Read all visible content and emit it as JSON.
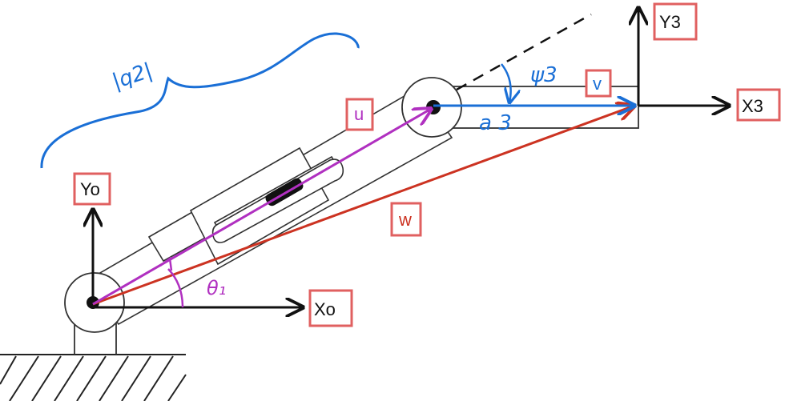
{
  "labels": {
    "y0": "Yo",
    "x0": "Xo",
    "y3": "Y3",
    "x3": "X3",
    "u": "u",
    "v": "v",
    "w": "w"
  },
  "annotations": {
    "theta1": "θ₁",
    "psi3": "ψ3",
    "a3": "a 3",
    "q2": "|q2|"
  },
  "colors": {
    "link": "#333333",
    "u_vector": "#b030c0",
    "v_vector": "#1a6fd6",
    "w_vector": "#cc3322",
    "label_box": "#e06060",
    "axes": "#111111"
  }
}
